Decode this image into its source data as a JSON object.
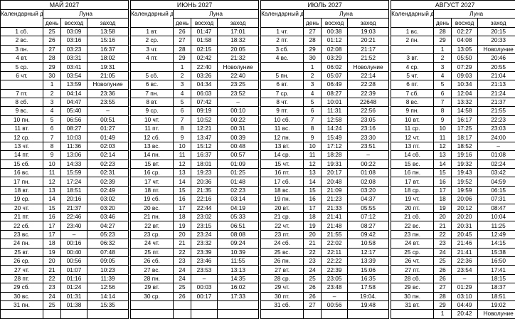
{
  "header": {
    "calendar_day": "Календарный день",
    "moon": "Луна",
    "moon_day": "день",
    "rise": "восход",
    "set": "заход"
  },
  "months": [
    {
      "title": "МАЙ 2027",
      "rows": [
        [
          "1 сб.",
          "25",
          "03:09",
          "13:58"
        ],
        [
          "2 вс.",
          "26",
          "03:16",
          "15:16"
        ],
        [
          "3 пн.",
          "27",
          "03:23",
          "16:37"
        ],
        [
          "4 вт.",
          "28",
          "03:31",
          "18:02"
        ],
        [
          "5 ср.",
          "29",
          "03:41",
          "19:31"
        ],
        [
          "6 чт.",
          "30",
          "03:54",
          "21:05"
        ],
        [
          "",
          "1",
          "13:59",
          "Новолуние"
        ],
        [
          "7 пт.",
          "2",
          "04:14",
          "23:36"
        ],
        [
          "8 сб.",
          "3",
          "04:47",
          "23:55"
        ],
        [
          "9 вс.",
          "4",
          "05:40",
          "–"
        ],
        [
          "10 пн.",
          "5",
          "06:56",
          "00:51"
        ],
        [
          "11 вт.",
          "6",
          "08:27",
          "01:27"
        ],
        [
          "12 ср.",
          "7",
          "10:03",
          "01:49"
        ],
        [
          "13 чт.",
          "8",
          "11:36",
          "02:03"
        ],
        [
          "14 пт.",
          "9",
          "13:06",
          "02:14"
        ],
        [
          "15 сб.",
          "10",
          "14:33",
          "02:23"
        ],
        [
          "16 вс.",
          "11",
          "15:59",
          "02:31"
        ],
        [
          "17 пн.",
          "12",
          "17:24",
          "02:39"
        ],
        [
          "18 вт.",
          "13",
          "18:51",
          "02:49"
        ],
        [
          "19 ср.",
          "14",
          "20:16",
          "03:02"
        ],
        [
          "20 чт.",
          "15",
          "21:37",
          "03:20"
        ],
        [
          "21 пт.",
          "16",
          "22:46",
          "03:46"
        ],
        [
          "22 сб.",
          "17",
          "23:40",
          "04:27"
        ],
        [
          "23 вс.",
          "17",
          "–",
          "05:23"
        ],
        [
          "24 пн.",
          "18",
          "00:16",
          "06:32"
        ],
        [
          "25 вт.",
          "19",
          "00:40",
          "07:48"
        ],
        [
          "26 ср.",
          "20",
          "00:56",
          "09:05"
        ],
        [
          "27 чт.",
          "21",
          "01:07",
          "10:23"
        ],
        [
          "28 пт.",
          "22",
          "01:16",
          "11:39"
        ],
        [
          "29 сб.",
          "23",
          "01:24",
          "12:56"
        ],
        [
          "30 вс.",
          "24",
          "01:31",
          "14:14"
        ],
        [
          "31 пн.",
          "25",
          "01:38",
          "15:35"
        ],
        [
          "",
          "",
          "",
          ""
        ]
      ]
    },
    {
      "title": "ИЮНЬ 2027",
      "rows": [
        [
          "1 вт.",
          "26",
          "01:47",
          "17:01"
        ],
        [
          "2 ср.",
          "27",
          "01:58",
          "18:32"
        ],
        [
          "3 чт.",
          "28",
          "02:15",
          "20:05"
        ],
        [
          "4 пт.",
          "29",
          "02:42",
          "21:32"
        ],
        [
          "",
          "1",
          "22:40",
          "Новолуние"
        ],
        [
          "5 сб.",
          "2",
          "03:26",
          "22:40"
        ],
        [
          "6 вс.",
          "3",
          "04:34",
          "23:25"
        ],
        [
          "7 пн.",
          "4",
          "06:03",
          "23:52"
        ],
        [
          "8 вт.",
          "5",
          "07:42",
          "–"
        ],
        [
          "9 ср.",
          "6",
          "09:19",
          "00:10"
        ],
        [
          "10 чт.",
          "7",
          "10:52",
          "00:22"
        ],
        [
          "11 пт.",
          "8",
          "12:21",
          "00:31"
        ],
        [
          "12 сб.",
          "9",
          "13:47",
          "00:39"
        ],
        [
          "13 вс.",
          "10",
          "15:12",
          "00:48"
        ],
        [
          "14 пн.",
          "11",
          "16:37",
          "00:57"
        ],
        [
          "15 вт.",
          "12",
          "18:01",
          "01:09"
        ],
        [
          "16 ср.",
          "13",
          "19:23",
          "01:25"
        ],
        [
          "17 чт.",
          "14",
          "20:36",
          "01:48"
        ],
        [
          "18 пт.",
          "15",
          "21:35",
          "02:23"
        ],
        [
          "19 сб.",
          "16",
          "22:16",
          "03:14"
        ],
        [
          "20 вс.",
          "17",
          "22:44",
          "04:19"
        ],
        [
          "21 пн.",
          "18",
          "23:02",
          "05:33"
        ],
        [
          "22 вт.",
          "19",
          "23:15",
          "06:51"
        ],
        [
          "23 ср.",
          "20",
          "23:24",
          "08:08"
        ],
        [
          "24 чт.",
          "21",
          "23:32",
          "09:24"
        ],
        [
          "25 пт.",
          "22",
          "23:39",
          "10:39"
        ],
        [
          "26 сб.",
          "23",
          "23:46",
          "11:55"
        ],
        [
          "27 вс.",
          "24",
          "23:53",
          "13:13"
        ],
        [
          "28 пн.",
          "24",
          "–",
          "14:35"
        ],
        [
          "29 вт.",
          "25",
          "00:03",
          "16:02"
        ],
        [
          "30 ср.",
          "26",
          "00:17",
          "17:33"
        ],
        [
          "",
          "",
          "",
          ""
        ],
        [
          "",
          "",
          "",
          ""
        ]
      ]
    },
    {
      "title": "ИЮЛЬ 2027",
      "rows": [
        [
          "1 чт.",
          "27",
          "00:38",
          "19:03"
        ],
        [
          "2 пт.",
          "28",
          "01:12",
          "20:21"
        ],
        [
          "3 сб.",
          "29",
          "02:08",
          "21:17"
        ],
        [
          "4 вс.",
          "30",
          "03:29",
          "21:52"
        ],
        [
          "",
          "1",
          "06:02",
          "Новолуние"
        ],
        [
          "5 пн.",
          "2",
          "05:07",
          "22:14"
        ],
        [
          "6 вт.",
          "3",
          "06:49",
          "22:28"
        ],
        [
          "7 ср.",
          "4",
          "08:27",
          "22:39"
        ],
        [
          "8 чт.",
          "5",
          "10:01",
          "22648"
        ],
        [
          "9 пт.",
          "6",
          "11:31",
          "22:56"
        ],
        [
          "10 сб.",
          "7",
          "12:58",
          "23:05"
        ],
        [
          "11 вс.",
          "8",
          "14:24",
          "23:16"
        ],
        [
          "12 пн.",
          "9",
          "15:49",
          "23:30"
        ],
        [
          "13 вт.",
          "10",
          "17:12",
          "23:51"
        ],
        [
          "14 ср.",
          "11",
          "18:28",
          "–"
        ],
        [
          "15 чт.",
          "12",
          "19:31",
          "00:22"
        ],
        [
          "16 пт.",
          "13",
          "20:17",
          "01:08"
        ],
        [
          "17 сб.",
          "14",
          "20:48",
          "02:08"
        ],
        [
          "18 вс.",
          "15",
          "21:09",
          "03:20"
        ],
        [
          "19 пн.",
          "16",
          "21:23",
          "04:37"
        ],
        [
          "20 вт.",
          "17",
          "21:33",
          "05:55"
        ],
        [
          "21 ср.",
          "18",
          "21:41",
          "07:12"
        ],
        [
          "22 чт.",
          "19",
          "21:48",
          "08:27"
        ],
        [
          "23 пт.",
          "20",
          "21:55",
          "09:42"
        ],
        [
          "24 сб.",
          "21",
          "22:02",
          "10:58"
        ],
        [
          "25 вс.",
          "22",
          "22:11",
          "12:17"
        ],
        [
          "26 пн.",
          "23",
          "22:22",
          "13:39"
        ],
        [
          "27 вт.",
          "24",
          "22:39",
          "15:06"
        ],
        [
          "28 ср.",
          "25",
          "23:05",
          "16:35"
        ],
        [
          "29 чт.",
          "26",
          "23:48",
          "17:58"
        ],
        [
          "30 пт.",
          "26",
          "–",
          "19:04."
        ],
        [
          "31 сб.",
          "27",
          "00:56",
          "19:48"
        ],
        [
          "",
          "",
          "",
          ""
        ]
      ]
    },
    {
      "title": "АВГУСТ 2027",
      "rows": [
        [
          "1 вс.",
          "28",
          "02:27",
          "20:15"
        ],
        [
          "2 пн.",
          "29",
          "04:08",
          "20:33"
        ],
        [
          "",
          "1",
          "13:05",
          "Новолуние"
        ],
        [
          "3 вт.",
          "2",
          "05:50",
          "20:46"
        ],
        [
          "4 ср.",
          "3",
          "07:29",
          "20:55"
        ],
        [
          "5 чт.",
          "4",
          "09:03",
          "21:04"
        ],
        [
          "6 пт.",
          "5",
          "10:34",
          "21:13"
        ],
        [
          "7 сб.",
          "6",
          "12:04",
          "21:24"
        ],
        [
          "8 вс.",
          "7",
          "13:32",
          "21:37"
        ],
        [
          "9 пн.",
          "8",
          "14:58",
          "21:55"
        ],
        [
          "10 вт.",
          "9",
          "16:17",
          "22:23"
        ],
        [
          "11 ср.",
          "10",
          "17:25",
          "23:03"
        ],
        [
          "12 чт.",
          "11",
          "18:17",
          "24:00"
        ],
        [
          "13 пт.",
          "12",
          "18:52",
          "–"
        ],
        [
          "14 сб.",
          "13",
          "19:16",
          "01:08"
        ],
        [
          "15 вс.",
          "14",
          "19:32",
          "02:24"
        ],
        [
          "16 пн.",
          "15",
          "19:43",
          "03:42"
        ],
        [
          "17 вт.",
          "16",
          "19:52",
          "04:59"
        ],
        [
          "18 ср.",
          "17",
          "19:59",
          "06:15"
        ],
        [
          "19 чт.",
          "18",
          "20:06",
          "07:31"
        ],
        [
          "20 пт.",
          "19",
          "20:12",
          "08:47"
        ],
        [
          "21 сб.",
          "20",
          "20:20",
          "10:04"
        ],
        [
          "22 вс.",
          "21",
          "20:31",
          "11:25"
        ],
        [
          "23 пн.",
          "22",
          "20:45",
          "12:49"
        ],
        [
          "24 вт.",
          "23",
          "21:46",
          "14:15"
        ],
        [
          "25 ср.",
          "24",
          "21:41",
          "15:38"
        ],
        [
          "26 чт.",
          "25",
          "22:36",
          "16:50"
        ],
        [
          "27 пт.",
          "26",
          "23:54",
          "17:41"
        ],
        [
          "28 сб.",
          "26",
          "–",
          "18:15"
        ],
        [
          "29 вс.",
          "27",
          "01:29",
          "18:37"
        ],
        [
          "30 пн.",
          "28",
          "03:10",
          "18:51"
        ],
        [
          "31 вт.",
          "29",
          "04:49",
          "19:02"
        ],
        [
          "",
          "1",
          "20:42",
          "Новолуние"
        ]
      ]
    }
  ]
}
